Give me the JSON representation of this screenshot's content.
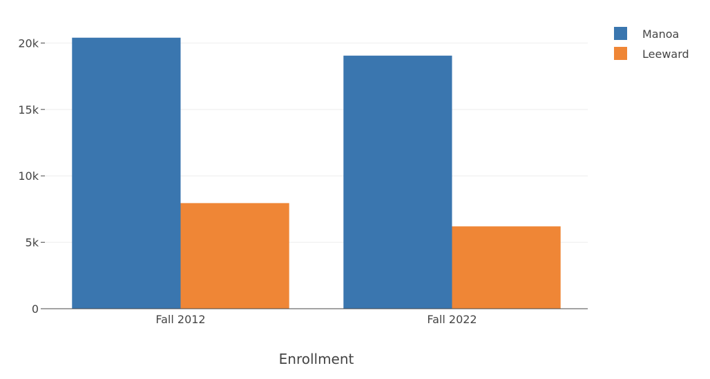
{
  "chart_data": {
    "type": "bar",
    "categories": [
      "Fall 2012",
      "Fall 2022"
    ],
    "series": [
      {
        "name": "Manoa",
        "values": [
          20400,
          19050
        ],
        "color": "#3a76af"
      },
      {
        "name": "Leeward",
        "values": [
          7950,
          6200
        ],
        "color": "#ef8636"
      }
    ],
    "xlabel": "Enrollment",
    "ylabel": "",
    "ylim": [
      0,
      20800
    ],
    "yticks": [
      0,
      5000,
      10000,
      15000,
      20000
    ],
    "ytick_labels": [
      "0",
      "5k",
      "10k",
      "15k",
      "20k"
    ],
    "grid": true,
    "legend_position": "top-right"
  },
  "colors": {
    "grid": "#eeeeee",
    "axis": "#444444",
    "text": "#444444"
  }
}
